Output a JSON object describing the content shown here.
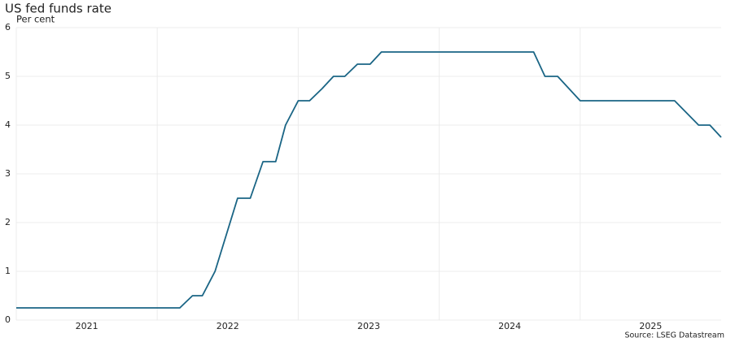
{
  "chart_data": {
    "type": "line",
    "title": "US fed funds rate",
    "subtitle": "Per cent",
    "source": "Source: LSEG Datastream",
    "x": [
      2021,
      2022.16,
      2022.25,
      2022.32,
      2022.41,
      2022.57,
      2022.66,
      2022.75,
      2022.84,
      2022.91,
      2023.0,
      2023.08,
      2023.17,
      2023.25,
      2023.33,
      2023.42,
      2023.51,
      2023.59,
      2024.67,
      2024.75,
      2024.84,
      2025.0,
      2025.67,
      2025.84,
      2025.92,
      2026.0
    ],
    "series": [
      {
        "name": "US fed funds rate",
        "color": "#1a6585",
        "values": [
          0.25,
          0.25,
          0.5,
          0.5,
          1.0,
          2.5,
          2.5,
          3.25,
          3.25,
          4.0,
          4.5,
          4.5,
          4.75,
          5.0,
          5.0,
          5.25,
          5.25,
          5.5,
          5.5,
          5.0,
          5.0,
          4.5,
          4.5,
          4.0,
          4.0,
          3.75
        ]
      }
    ],
    "xlim": [
      2021,
      2026
    ],
    "xticks": [
      2021,
      2022,
      2023,
      2024,
      2025
    ],
    "ylim": [
      0,
      6
    ],
    "yticks": [
      0,
      1,
      2,
      3,
      4,
      5,
      6
    ],
    "grid": true
  }
}
